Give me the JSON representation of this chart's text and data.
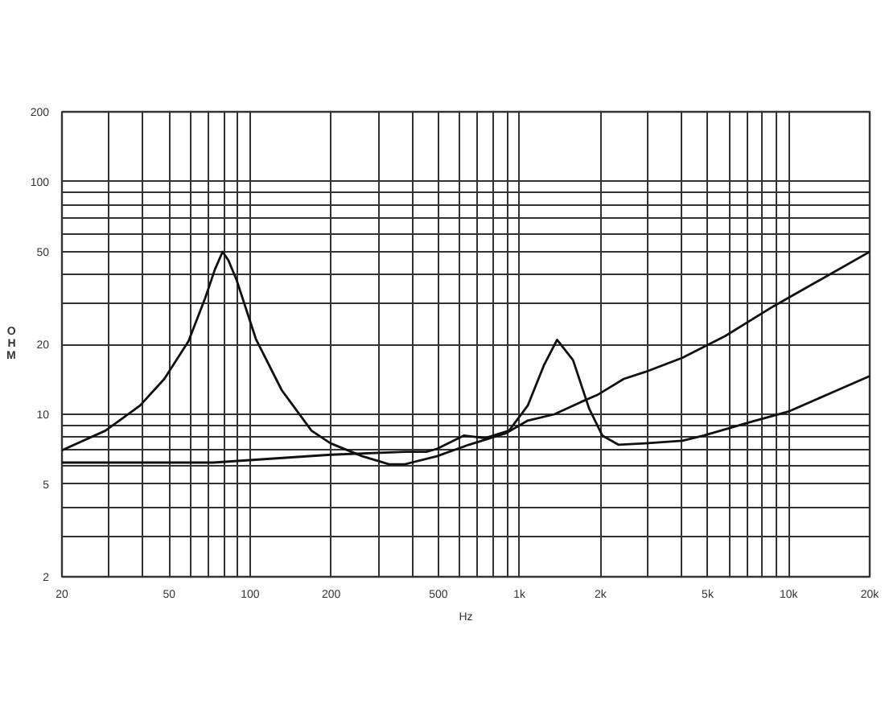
{
  "chart_data": {
    "type": "line",
    "xlabel": "Hz",
    "ylabel": "OHM",
    "log": "xy",
    "grid": true,
    "line_style": "solid",
    "xlim": [
      20,
      20000
    ],
    "ylim": [
      2,
      200
    ],
    "xticks": [
      20,
      {
        "value": 30,
        "label": null
      },
      {
        "value": 40,
        "label": null
      },
      50,
      {
        "value": 60,
        "label": null
      },
      {
        "value": 70,
        "label": null
      },
      {
        "value": 80,
        "label": null
      },
      {
        "value": 90,
        "label": null
      },
      100,
      200,
      {
        "value": 300,
        "label": null
      },
      {
        "value": 400,
        "label": null
      },
      500,
      {
        "value": 600,
        "label": null
      },
      {
        "value": 700,
        "label": null
      },
      {
        "value": 800,
        "label": null
      },
      {
        "value": 900,
        "label": null
      },
      {
        "value": 1000,
        "label": "1k"
      },
      {
        "value": 2000,
        "label": "2k"
      },
      {
        "value": 3000,
        "label": null
      },
      {
        "value": 4000,
        "label": null
      },
      {
        "value": 5000,
        "label": "5k"
      },
      {
        "value": 6000,
        "label": null
      },
      {
        "value": 7000,
        "label": null
      },
      {
        "value": 8000,
        "label": null
      },
      {
        "value": 9000,
        "label": null
      },
      {
        "value": 10000,
        "label": "10k"
      },
      {
        "value": 20000,
        "label": "20k"
      }
    ],
    "yticks": [
      2,
      {
        "value": 3,
        "label": null
      },
      {
        "value": 4,
        "label": null
      },
      5,
      {
        "value": 6,
        "label": null
      },
      {
        "value": 7,
        "label": null
      },
      {
        "value": 8,
        "label": null
      },
      {
        "value": 9,
        "label": null
      },
      10,
      20,
      {
        "value": 30,
        "label": null
      },
      {
        "value": 40,
        "label": null
      },
      50,
      {
        "value": 60,
        "label": null
      },
      {
        "value": 70,
        "label": null
      },
      {
        "value": 80,
        "label": null
      },
      {
        "value": 90,
        "label": null
      },
      100,
      200
    ],
    "series": [
      {
        "color": "#111111",
        "x": [
          20,
          29,
          39,
          48,
          59,
          68,
          74,
          79,
          83,
          89,
          105,
          131,
          169,
          199,
          261,
          328,
          376,
          494,
          650,
          894,
          1074,
          1348,
          1695,
          1944,
          2442,
          2930,
          4030,
          5810,
          8760,
          20000
        ],
        "values": [
          7.0,
          8.5,
          10.9,
          14.2,
          20.6,
          31.5,
          42,
          50,
          46,
          37.9,
          21.1,
          12.7,
          8.5,
          7.5,
          6.6,
          6.1,
          6.1,
          6.6,
          7.4,
          8.3,
          9.4,
          10.0,
          11.3,
          12.1,
          14.2,
          15.2,
          17.5,
          21.7,
          29.1,
          50
        ]
      },
      {
        "color": "#111111",
        "x": [
          20,
          73,
          199,
          376,
          451,
          494,
          621,
          745,
          915,
          1074,
          1232,
          1380,
          1582,
          1814,
          2032,
          2332,
          2930,
          4030,
          4840,
          7300,
          10040,
          14480,
          20000
        ],
        "values": [
          6.2,
          6.2,
          6.7,
          6.9,
          6.9,
          7.1,
          8.1,
          7.9,
          8.5,
          10.9,
          16.2,
          20.9,
          17.1,
          10.6,
          8.1,
          7.4,
          7.5,
          7.7,
          8.1,
          9.3,
          10.3,
          12.4,
          14.6
        ]
      }
    ]
  }
}
